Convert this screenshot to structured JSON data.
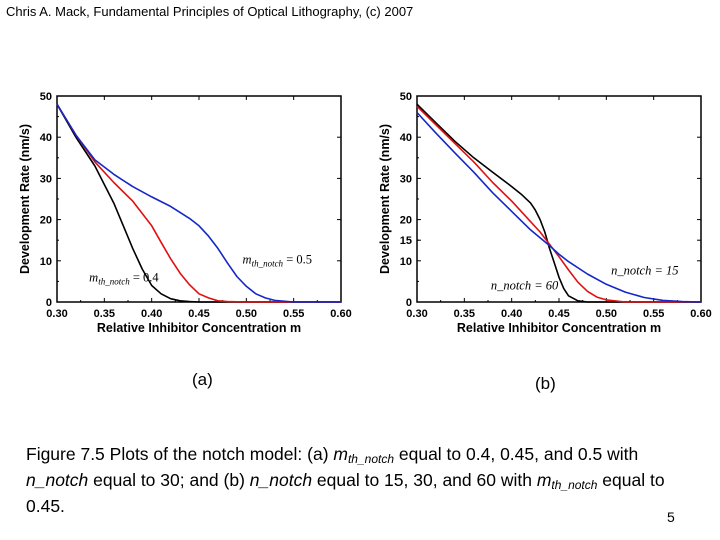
{
  "header": "Chris A. Mack, Fundamental Principles of Optical Lithography, (c) 2007",
  "panel_labels": [
    "(a)",
    "(b)"
  ],
  "caption": {
    "p1": "Figure 7.5 Plots of the notch model: (a) ",
    "m_italic": "m",
    "m_sub": "th_notch",
    "p2": " equal to 0.4, 0.45, and 0.5 with ",
    "n_notch": "n_notch",
    "p3": " equal to 30; and (b) ",
    "p4": " equal to 15, 30, and 60 with ",
    "p5": " equal to 0.45."
  },
  "page_number": "5",
  "colors": {
    "black": "#000000",
    "red": "#e01010",
    "blue": "#1428c8"
  },
  "chart_data": [
    {
      "type": "line",
      "xlabel": "Relative Inhibitor Concentration m",
      "ylabel": "Development Rate (nm/s)",
      "xlim": [
        0.3,
        0.6
      ],
      "ylim": [
        0,
        50
      ],
      "xticks": [
        "0.30",
        "0.35",
        "0.40",
        "0.45",
        "0.50",
        "0.55",
        "0.60"
      ],
      "yticks": [
        "0",
        "10",
        "20",
        "30",
        "40",
        "50"
      ],
      "annotations": [
        {
          "text": "m",
          "sub": "th_notch",
          "suffix": " = 0.4",
          "x": 0.334,
          "y": 5
        },
        {
          "text": "m",
          "sub": "th_notch",
          "suffix": " = 0.5",
          "x": 0.496,
          "y": 9.3
        }
      ],
      "series": [
        {
          "color": "black",
          "x": [
            0.3,
            0.32,
            0.34,
            0.36,
            0.37,
            0.38,
            0.39,
            0.4,
            0.41,
            0.42,
            0.43,
            0.44,
            0.45,
            0.47,
            0.5,
            0.6
          ],
          "y": [
            48,
            40,
            33,
            24,
            18.5,
            13,
            8,
            4,
            2,
            0.8,
            0.3,
            0.1,
            0,
            0,
            0,
            0
          ]
        },
        {
          "color": "red",
          "x": [
            0.3,
            0.32,
            0.34,
            0.36,
            0.38,
            0.4,
            0.41,
            0.42,
            0.43,
            0.44,
            0.45,
            0.46,
            0.47,
            0.48,
            0.5,
            0.6
          ],
          "y": [
            48,
            40.5,
            34,
            29,
            24.5,
            18.5,
            14.5,
            10.5,
            7,
            4.2,
            2,
            1,
            0.3,
            0.1,
            0,
            0
          ]
        },
        {
          "color": "blue",
          "x": [
            0.3,
            0.32,
            0.34,
            0.36,
            0.38,
            0.4,
            0.42,
            0.44,
            0.45,
            0.46,
            0.47,
            0.48,
            0.49,
            0.5,
            0.51,
            0.52,
            0.53,
            0.55,
            0.6
          ],
          "y": [
            48,
            40.5,
            34.5,
            31,
            28,
            25.5,
            23.2,
            20.3,
            18.5,
            16,
            13,
            9.5,
            6.2,
            3.8,
            2,
            1,
            0.4,
            0,
            0
          ]
        }
      ]
    },
    {
      "type": "line",
      "xlabel": "Relative Inhibitor Concentration m",
      "ylabel": "Development Rate (nm/s)",
      "xlim": [
        0.3,
        0.6
      ],
      "ylim": [
        0,
        50
      ],
      "xticks": [
        "0.30",
        "0.35",
        "0.40",
        "0.45",
        "0.50",
        "0.55",
        "0.60"
      ],
      "yticks": [
        "0",
        "10",
        "15",
        "20",
        "30",
        "40",
        "50"
      ],
      "annotations": [
        {
          "text": "n_notch = 15",
          "x": 0.505,
          "y": 6.7
        },
        {
          "text": "n_notch = 60",
          "x": 0.378,
          "y": 3
        }
      ],
      "series": [
        {
          "color": "black",
          "x": [
            0.3,
            0.32,
            0.34,
            0.36,
            0.38,
            0.4,
            0.41,
            0.42,
            0.425,
            0.43,
            0.435,
            0.44,
            0.445,
            0.45,
            0.455,
            0.46,
            0.47,
            0.48,
            0.5,
            0.6
          ],
          "y": [
            48,
            43.5,
            39,
            35,
            31.5,
            28,
            26.2,
            24,
            22.3,
            20,
            17,
            13,
            9.5,
            6,
            3.3,
            1.5,
            0.3,
            0,
            0,
            0
          ]
        },
        {
          "color": "red",
          "x": [
            0.3,
            0.32,
            0.34,
            0.36,
            0.38,
            0.4,
            0.42,
            0.43,
            0.44,
            0.45,
            0.46,
            0.47,
            0.48,
            0.49,
            0.5,
            0.52,
            0.6
          ],
          "y": [
            47.5,
            43,
            38.5,
            34,
            29,
            24.5,
            19.5,
            17,
            14,
            11,
            7.8,
            4.8,
            2.6,
            1.2,
            0.5,
            0,
            0
          ]
        },
        {
          "color": "blue",
          "x": [
            0.3,
            0.32,
            0.34,
            0.36,
            0.38,
            0.4,
            0.42,
            0.44,
            0.45,
            0.46,
            0.48,
            0.5,
            0.52,
            0.54,
            0.56,
            0.58,
            0.6
          ],
          "y": [
            46,
            41,
            36.2,
            31.5,
            26.5,
            22,
            17.5,
            13.7,
            11.6,
            9.8,
            6.8,
            4.3,
            2.4,
            1.1,
            0.4,
            0.1,
            0
          ]
        }
      ]
    }
  ]
}
